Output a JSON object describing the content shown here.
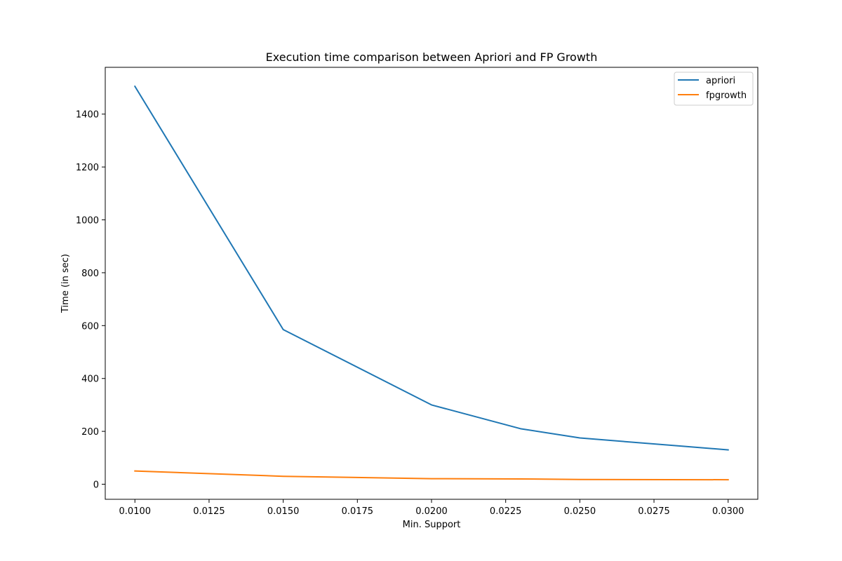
{
  "chart_data": {
    "type": "line",
    "title": "Execution time comparison between Apriori and FP Growth",
    "xlabel": "Min. Support",
    "ylabel": "Time (in sec)",
    "x": [
      0.01,
      0.015,
      0.02,
      0.023,
      0.025,
      0.03
    ],
    "series": [
      {
        "name": "apriori",
        "color": "#1f77b4",
        "values": [
          1505,
          585,
          300,
          210,
          175,
          130
        ]
      },
      {
        "name": "fpgrowth",
        "color": "#ff7f0e",
        "values": [
          50,
          30,
          21,
          20,
          18,
          17
        ]
      }
    ],
    "xlim": [
      0.009,
      0.031
    ],
    "ylim": [
      -57,
      1577
    ],
    "x_ticks": [
      "0.0100",
      "0.0125",
      "0.0150",
      "0.0175",
      "0.0200",
      "0.0225",
      "0.0250",
      "0.0275",
      "0.0300"
    ],
    "y_ticks": [
      "0",
      "200",
      "400",
      "600",
      "800",
      "1000",
      "1200",
      "1400"
    ],
    "legend_position": "top-right",
    "grid": false
  }
}
